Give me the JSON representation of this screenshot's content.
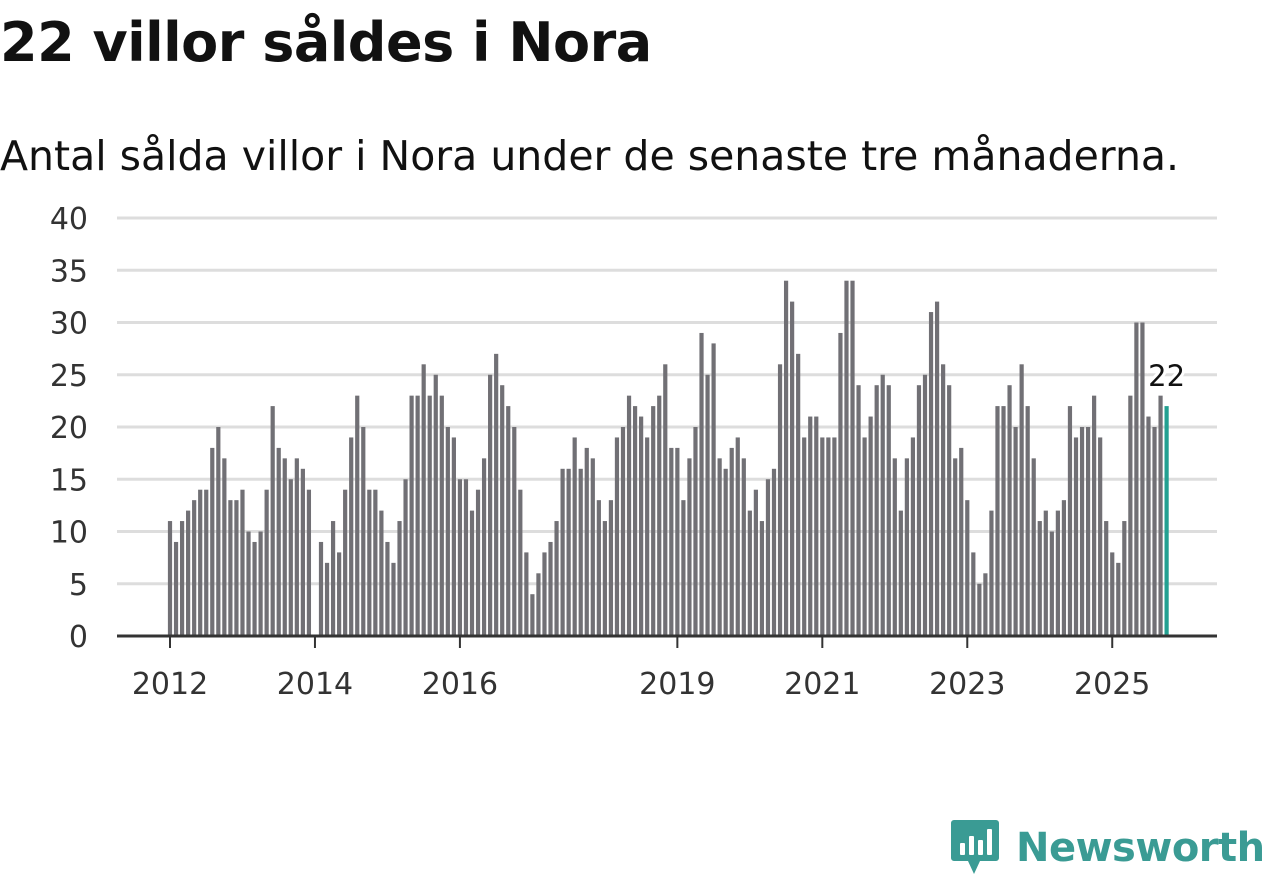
{
  "title": "22 villor såldes i Nora",
  "subtitle": "Antal sålda villor i Nora under de senaste tre månaderna.",
  "brand": {
    "name": "Newsworthy",
    "icon": "bar-chart-speech-bubble-icon",
    "color": "#3a9b94"
  },
  "colors": {
    "bar": "#717075",
    "highlight": "#23a091",
    "grid": "#dddddd",
    "axis": "#333333"
  },
  "chart_data": {
    "type": "bar",
    "title": "22 villor såldes i Nora",
    "xlabel": "",
    "ylabel": "",
    "ylim": [
      0,
      40
    ],
    "yticks": [
      0,
      5,
      10,
      15,
      20,
      25,
      30,
      35,
      40
    ],
    "grid": true,
    "start": "2012-01",
    "xticks": [
      {
        "label": "2012",
        "index": 0
      },
      {
        "label": "2014",
        "index": 24
      },
      {
        "label": "2016",
        "index": 48
      },
      {
        "label": "2019",
        "index": 84
      },
      {
        "label": "2021",
        "index": 108
      },
      {
        "label": "2023",
        "index": 132
      },
      {
        "label": "2025",
        "index": 156
      }
    ],
    "values": [
      11,
      9,
      11,
      12,
      13,
      14,
      14,
      18,
      20,
      17,
      13,
      13,
      14,
      10,
      9,
      10,
      14,
      22,
      18,
      17,
      15,
      17,
      16,
      14,
      0,
      9,
      7,
      11,
      8,
      14,
      19,
      23,
      20,
      14,
      14,
      12,
      9,
      7,
      11,
      15,
      23,
      23,
      26,
      23,
      25,
      23,
      20,
      19,
      15,
      15,
      12,
      14,
      17,
      25,
      27,
      24,
      22,
      20,
      14,
      8,
      4,
      6,
      8,
      9,
      11,
      16,
      16,
      19,
      16,
      18,
      17,
      13,
      11,
      13,
      19,
      20,
      23,
      22,
      21,
      19,
      22,
      23,
      26,
      18,
      18,
      13,
      17,
      20,
      29,
      25,
      28,
      17,
      16,
      18,
      19,
      17,
      12,
      14,
      11,
      15,
      16,
      26,
      34,
      32,
      27,
      19,
      21,
      21,
      19,
      19,
      19,
      29,
      34,
      34,
      24,
      19,
      21,
      24,
      25,
      24,
      17,
      12,
      17,
      19,
      24,
      25,
      31,
      32,
      26,
      24,
      17,
      18,
      13,
      8,
      5,
      6,
      12,
      22,
      22,
      24,
      20,
      26,
      22,
      17,
      11,
      12,
      10,
      12,
      13,
      22,
      19,
      20,
      20,
      23,
      19,
      11,
      8,
      7,
      11,
      23,
      30,
      30,
      21,
      20,
      23,
      22
    ],
    "highlight_label": "22"
  }
}
